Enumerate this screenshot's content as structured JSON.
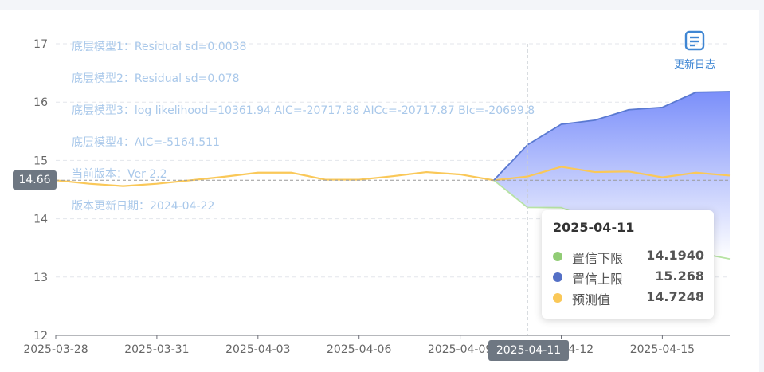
{
  "annotations": [
    "底层模型1：Residual sd=0.0038",
    "底层模型2：Residual sd=0.078",
    "底层模型3：log likelihood=10361.94 AIC=-20717.88 AICc=-20717.87 BIc=-20699.8",
    "底层模型4：AIC=-5164.511",
    "当前版本：Ver 2.2",
    "版本更新日期：2024-04-22"
  ],
  "log_button": {
    "label": "更新日志",
    "icon": "document-icon"
  },
  "tooltip": {
    "title": "2025-04-11",
    "rows": [
      {
        "name": "置信下限",
        "value": "14.1940",
        "color": "#91cc75"
      },
      {
        "name": "置信上限",
        "value": "15.268",
        "color": "#5470c6"
      },
      {
        "name": "预测值",
        "value": "14.7248",
        "color": "#fac858"
      }
    ]
  },
  "axis_pointer": {
    "y_label": "14.66",
    "x_label": "2025-04-11"
  },
  "chart_data": {
    "type": "line",
    "x": [
      "2025-03-28",
      "2025-03-29",
      "2025-03-30",
      "2025-03-31",
      "2025-04-01",
      "2025-04-02",
      "2025-04-03",
      "2025-04-04",
      "2025-04-05",
      "2025-04-06",
      "2025-04-07",
      "2025-04-08",
      "2025-04-09",
      "2025-04-10",
      "2025-04-11",
      "2025-04-12",
      "2025-04-13",
      "2025-04-14",
      "2025-04-15",
      "2025-04-16",
      "2025-04-17"
    ],
    "x_tick_labels": [
      "2025-03-28",
      "2025-03-31",
      "2025-04-03",
      "2025-04-06",
      "2025-04-09",
      "2025-04-12",
      "2025-04-15"
    ],
    "ylim": [
      12,
      17
    ],
    "y_ticks": [
      12,
      13,
      14,
      15,
      16,
      17
    ],
    "grid": true,
    "reference_line_y": 14.66,
    "pointer_x": "2025-04-11",
    "series": [
      {
        "name": "预测值",
        "color": "#fac858",
        "values": [
          14.66,
          14.6,
          14.56,
          14.6,
          14.66,
          14.72,
          14.79,
          14.79,
          14.67,
          14.67,
          14.73,
          14.8,
          14.76,
          14.66,
          14.7248,
          14.89,
          14.8,
          14.81,
          14.71,
          14.79,
          14.74
        ]
      },
      {
        "name": "置信下限",
        "color": "#91cc75",
        "values": [
          null,
          null,
          null,
          null,
          null,
          null,
          null,
          null,
          null,
          null,
          null,
          null,
          null,
          14.66,
          14.194,
          14.19,
          13.96,
          13.79,
          13.5,
          13.42,
          13.31
        ]
      },
      {
        "name": "置信上限",
        "color": "#5470c6",
        "values": [
          null,
          null,
          null,
          null,
          null,
          null,
          null,
          null,
          null,
          null,
          null,
          null,
          null,
          14.66,
          15.268,
          15.62,
          15.69,
          15.87,
          15.91,
          16.17,
          16.18
        ]
      }
    ]
  }
}
